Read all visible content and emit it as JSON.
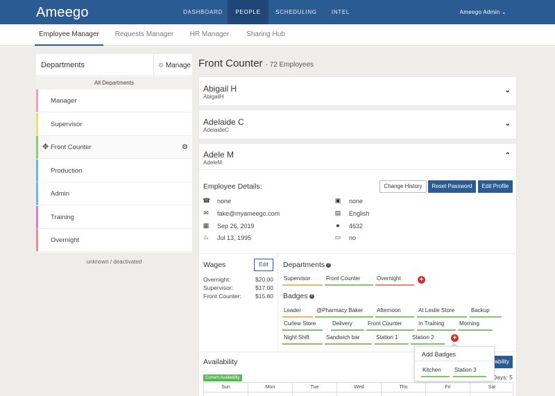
{
  "brand": "Ameego",
  "nav": [
    "DASHBOARD",
    "PEOPLE",
    "SCHEDULING",
    "INTEL"
  ],
  "user_menu": "Ameego Admin ⌄",
  "subnav": [
    "Employee Manager",
    "Requests Manager",
    "HR Manager",
    "Sharing Hub"
  ],
  "departments_panel": {
    "title": "Departments",
    "manage_label": "Manage",
    "all_label": "All Departments",
    "items": [
      {
        "label": "Manager",
        "color": "#f39ac0"
      },
      {
        "label": "Supervisor",
        "color": "#f5d970"
      },
      {
        "label": "Front Counter",
        "color": "#8ccb6e"
      },
      {
        "label": "Production",
        "color": "#6ab6e6"
      },
      {
        "label": "Admin",
        "color": "#6ab6e6"
      },
      {
        "label": "Training",
        "color": "#d27fcf"
      },
      {
        "label": "Overnight",
        "color": "#f08e8e"
      }
    ],
    "footer": "unknown / deactivated"
  },
  "page": {
    "title": "Front Counter",
    "subtitle": "- 72 Employees"
  },
  "employees": [
    {
      "name": "Abigail H",
      "username": "AbigailH"
    },
    {
      "name": "Adelaide C",
      "username": "AdelaideC"
    },
    {
      "name": "Adele M",
      "username": "AdeleM"
    }
  ],
  "details": {
    "title": "Employee Details:",
    "buttons": {
      "change_history": "Change History",
      "reset_password": "Reset Password",
      "edit_profile": "Edit Profile"
    },
    "left": [
      {
        "icon": "phone-icon",
        "value": "none"
      },
      {
        "icon": "envelope-icon",
        "value": "fake@myameego.com"
      },
      {
        "icon": "calendar-icon",
        "value": "Sep 26, 2019"
      },
      {
        "icon": "birthday-cake-icon",
        "value": "Jul 13, 1995"
      }
    ],
    "right": [
      {
        "icon": "car-icon",
        "value": "none"
      },
      {
        "icon": "book-icon",
        "value": "English"
      },
      {
        "icon": "user-icon",
        "value": "4632"
      },
      {
        "icon": "id-card-icon",
        "value": "no"
      }
    ]
  },
  "wages": {
    "title": "Wages",
    "edit_label": "Edit",
    "rows": [
      {
        "label": "Overnight:",
        "value": "$20.00"
      },
      {
        "label": "Supervisor:",
        "value": "$17.00"
      },
      {
        "label": "Front Counter:",
        "value": "$15.80"
      }
    ]
  },
  "departments": {
    "title": "Departments",
    "items": [
      {
        "label": "Supervisor",
        "color": "#f0b070"
      },
      {
        "label": "Front Counter",
        "color": "#88c070"
      },
      {
        "label": "Overnight",
        "color": "#f08080"
      }
    ]
  },
  "badges": {
    "title": "Badges",
    "items": [
      "Leader",
      "@Pharmacy Baker",
      "Afternoon",
      "At Leslie Store",
      "Backup",
      "Curlew Store",
      "Delivery",
      "Front Counter",
      "In Training",
      "Morning",
      "Night Shift",
      "Sandwich bar",
      "Station 1",
      "Station 2"
    ]
  },
  "add_badges": {
    "title": "Add Badges",
    "items": [
      "Kitchen",
      "Station 3"
    ]
  },
  "availability": {
    "title": "Availability",
    "button_fragment": "ilability",
    "days_fragment": "Days: 5",
    "current_label": "Current Availability",
    "days": [
      "Sun",
      "Mon",
      "Tue",
      "Wed",
      "Thu",
      "Fri",
      "Sat"
    ]
  }
}
